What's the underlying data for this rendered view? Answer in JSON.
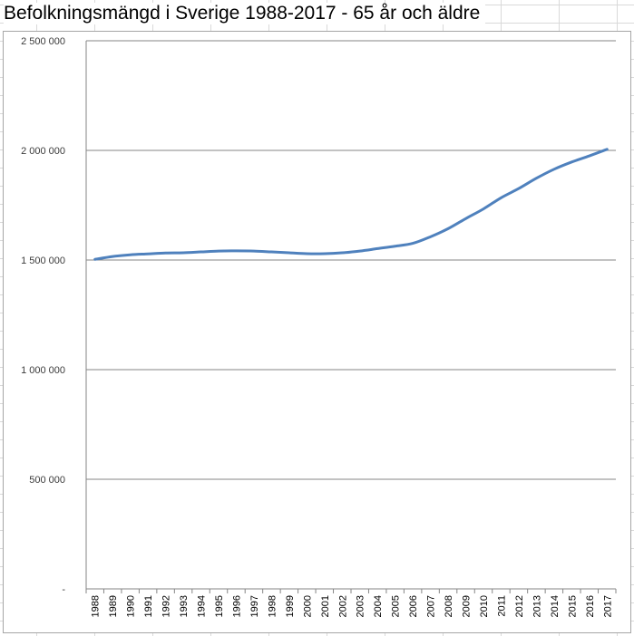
{
  "chart_data": {
    "type": "line",
    "title": "Befolkningsmängd i Sverige 1988-2017 - 65 år och äldre",
    "xlabel": "",
    "ylabel": "",
    "categories": [
      "1988",
      "1989",
      "1990",
      "1991",
      "1992",
      "1993",
      "1994",
      "1995",
      "1996",
      "1997",
      "1998",
      "1999",
      "2000",
      "2001",
      "2002",
      "2003",
      "2004",
      "2005",
      "2006",
      "2007",
      "2008",
      "2009",
      "2010",
      "2011",
      "2012",
      "2013",
      "2014",
      "2015",
      "2016",
      "2017"
    ],
    "series": [
      {
        "values": [
          1503000,
          1516000,
          1524000,
          1528000,
          1532000,
          1533000,
          1537000,
          1541000,
          1542000,
          1541000,
          1537000,
          1533000,
          1529000,
          1529000,
          1533000,
          1541000,
          1552000,
          1563000,
          1576000,
          1606000,
          1643000,
          1689000,
          1733000,
          1784000,
          1826000,
          1873000,
          1914000,
          1947000,
          1975000,
          2005000
        ],
        "color": "#4f81bd"
      }
    ],
    "y_ticks": [
      "-",
      "500 000",
      "1 000 000",
      "1 500 000",
      "2 000 000",
      "2 500 000"
    ],
    "ylim": [
      0,
      2500000
    ],
    "grid": true,
    "legend": "none"
  }
}
